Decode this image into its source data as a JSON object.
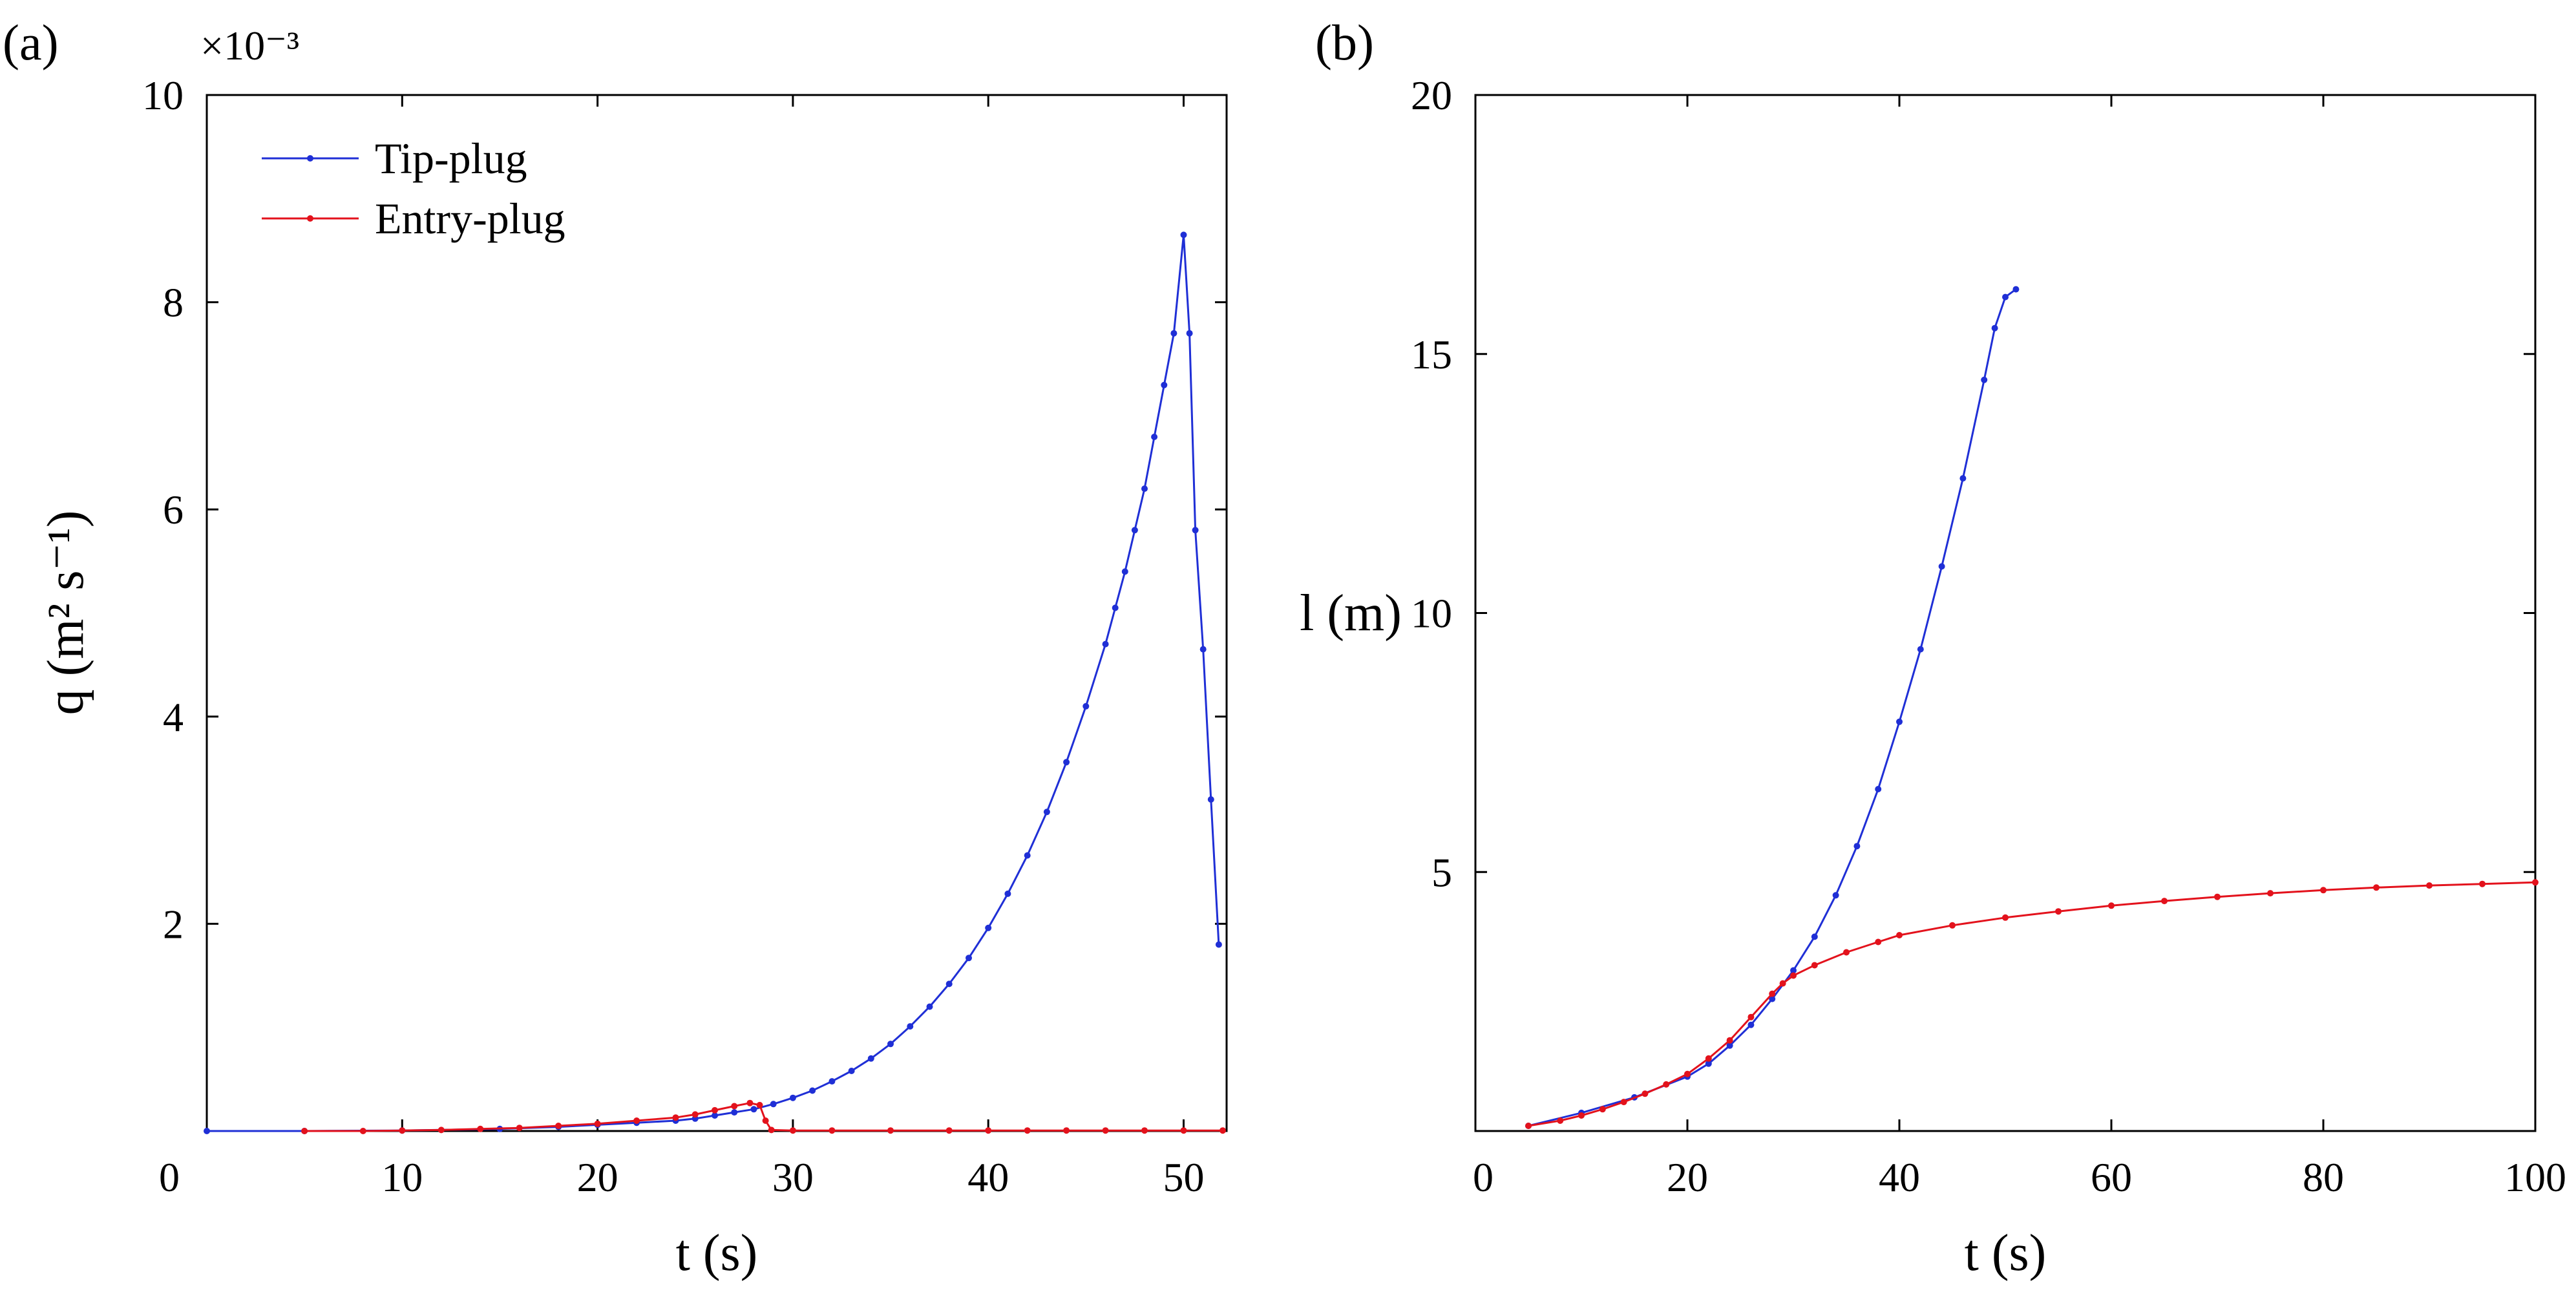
{
  "colors": {
    "tip": "#1f2fd6",
    "entry": "#e3121c"
  },
  "chart_data": [
    {
      "type": "line",
      "panel_label": "(a)",
      "xlabel": "t (s)",
      "ylabel": "q (m² s⁻¹)",
      "y_multiplier": "×10⁻³",
      "xlim": [
        0,
        52.2
      ],
      "ylim": [
        0,
        10
      ],
      "x_ticks": [
        10,
        20,
        30,
        40,
        50
      ],
      "x_tick_labels": [
        "10",
        "20",
        "30",
        "40",
        "50"
      ],
      "y_ticks": [
        2,
        4,
        6,
        8,
        10
      ],
      "y_tick_labels": [
        "2",
        "4",
        "6",
        "8",
        "10"
      ],
      "origin_label": "0",
      "legend": {
        "position": "top-left",
        "entries": [
          "Tip-plug",
          "Entry-plug"
        ]
      },
      "series": [
        {
          "name": "Tip-plug",
          "color_key": "tip",
          "x": [
            0,
            5,
            10,
            15,
            18,
            20,
            22,
            24,
            25,
            26,
            27,
            28,
            29,
            30,
            31,
            32,
            33,
            34,
            35,
            36,
            37,
            38,
            39,
            40,
            41,
            42,
            43,
            44,
            45,
            46,
            46.5,
            47,
            47.5,
            48,
            48.5,
            49,
            49.5,
            50,
            50.3,
            50.6,
            51.0,
            51.4,
            51.8
          ],
          "y": [
            0,
            0,
            0.005,
            0.02,
            0.04,
            0.06,
            0.08,
            0.1,
            0.12,
            0.15,
            0.18,
            0.21,
            0.26,
            0.32,
            0.39,
            0.48,
            0.58,
            0.7,
            0.84,
            1.01,
            1.2,
            1.42,
            1.67,
            1.96,
            2.29,
            2.66,
            3.08,
            3.56,
            4.1,
            4.7,
            5.05,
            5.4,
            5.8,
            6.2,
            6.7,
            7.2,
            7.7,
            8.65,
            7.7,
            5.8,
            4.65,
            3.2,
            1.8
          ]
        },
        {
          "name": "Entry-plug",
          "color_key": "entry",
          "x": [
            5,
            8,
            10,
            12,
            14,
            16,
            18,
            20,
            22,
            24,
            25,
            26,
            27,
            27.8,
            28.3,
            28.6,
            28.9,
            30,
            32,
            35,
            38,
            40,
            42,
            44,
            46,
            48,
            50,
            52
          ],
          "y": [
            0,
            0,
            0.005,
            0.01,
            0.02,
            0.03,
            0.05,
            0.07,
            0.1,
            0.13,
            0.16,
            0.2,
            0.24,
            0.27,
            0.25,
            0.1,
            0.01,
            0.005,
            0.005,
            0.005,
            0.005,
            0.005,
            0.005,
            0.005,
            0.005,
            0.005,
            0.005,
            0.005
          ]
        }
      ]
    },
    {
      "type": "line",
      "panel_label": "(b)",
      "xlabel": "t (s)",
      "ylabel": "l (m)",
      "xlim": [
        0,
        100
      ],
      "ylim": [
        0,
        20
      ],
      "x_ticks": [
        20,
        40,
        60,
        80,
        100
      ],
      "x_tick_labels": [
        "20",
        "40",
        "60",
        "80",
        "100"
      ],
      "y_ticks": [
        5,
        10,
        15,
        20
      ],
      "y_tick_labels": [
        "5",
        "10",
        "15",
        "20"
      ],
      "origin_label": "0",
      "series": [
        {
          "name": "Tip-plug",
          "color_key": "tip",
          "x": [
            5,
            10,
            15,
            20,
            22,
            24,
            26,
            28,
            30,
            32,
            34,
            36,
            38,
            40,
            42,
            44,
            46,
            48,
            49,
            50,
            51
          ],
          "y": [
            0.1,
            0.35,
            0.65,
            1.05,
            1.3,
            1.65,
            2.05,
            2.55,
            3.1,
            3.75,
            4.55,
            5.5,
            6.6,
            7.9,
            9.3,
            10.9,
            12.6,
            14.5,
            15.5,
            16.1,
            16.25
          ]
        },
        {
          "name": "Entry-plug",
          "color_key": "entry",
          "x": [
            5,
            8,
            10,
            12,
            14,
            16,
            18,
            20,
            22,
            24,
            26,
            28,
            29,
            30,
            32,
            35,
            38,
            40,
            45,
            50,
            55,
            60,
            65,
            70,
            75,
            80,
            85,
            90,
            95,
            100
          ],
          "y": [
            0.1,
            0.2,
            0.3,
            0.42,
            0.56,
            0.72,
            0.9,
            1.1,
            1.4,
            1.75,
            2.2,
            2.65,
            2.85,
            3.0,
            3.2,
            3.45,
            3.65,
            3.78,
            3.97,
            4.12,
            4.24,
            4.35,
            4.44,
            4.52,
            4.59,
            4.65,
            4.7,
            4.74,
            4.77,
            4.8
          ]
        }
      ]
    }
  ]
}
